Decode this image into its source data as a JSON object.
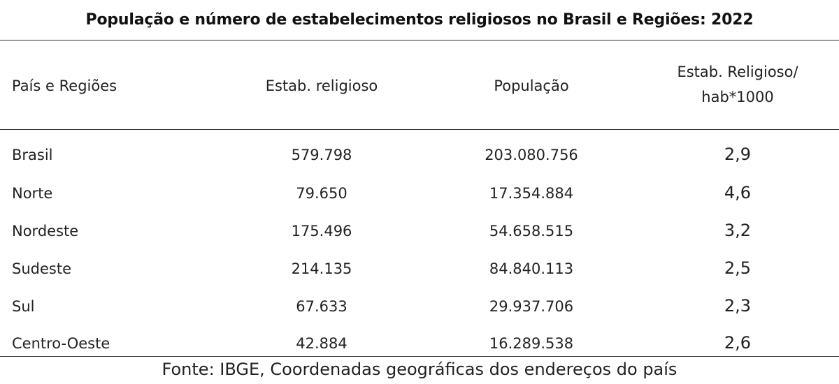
{
  "title": "População e número de estabelecimentos religiosos no Brasil e Regiões: 2022",
  "table": {
    "headers": {
      "region": "País e Regiões",
      "establishments": "Estab. religioso",
      "population": "População",
      "ratio_line1": "Estab. Religioso/",
      "ratio_line2": "hab*1000"
    },
    "rows": [
      {
        "region": "Brasil",
        "establishments": "579.798",
        "population": "203.080.756",
        "ratio": "2,9"
      },
      {
        "region": "Norte",
        "establishments": "79.650",
        "population": "17.354.884",
        "ratio": "4,6"
      },
      {
        "region": "Nordeste",
        "establishments": "175.496",
        "population": "54.658.515",
        "ratio": "3,2"
      },
      {
        "region": "Sudeste",
        "establishments": "214.135",
        "population": "84.840.113",
        "ratio": "2,5"
      },
      {
        "region": "Sul",
        "establishments": "67.633",
        "population": "29.937.706",
        "ratio": "2,3"
      },
      {
        "region": "Centro-Oeste",
        "establishments": "42.884",
        "population": "16.289.538",
        "ratio": "2,6"
      }
    ]
  },
  "source": "Fonte: IBGE, Coordenadas geográficas dos endereços do país"
}
